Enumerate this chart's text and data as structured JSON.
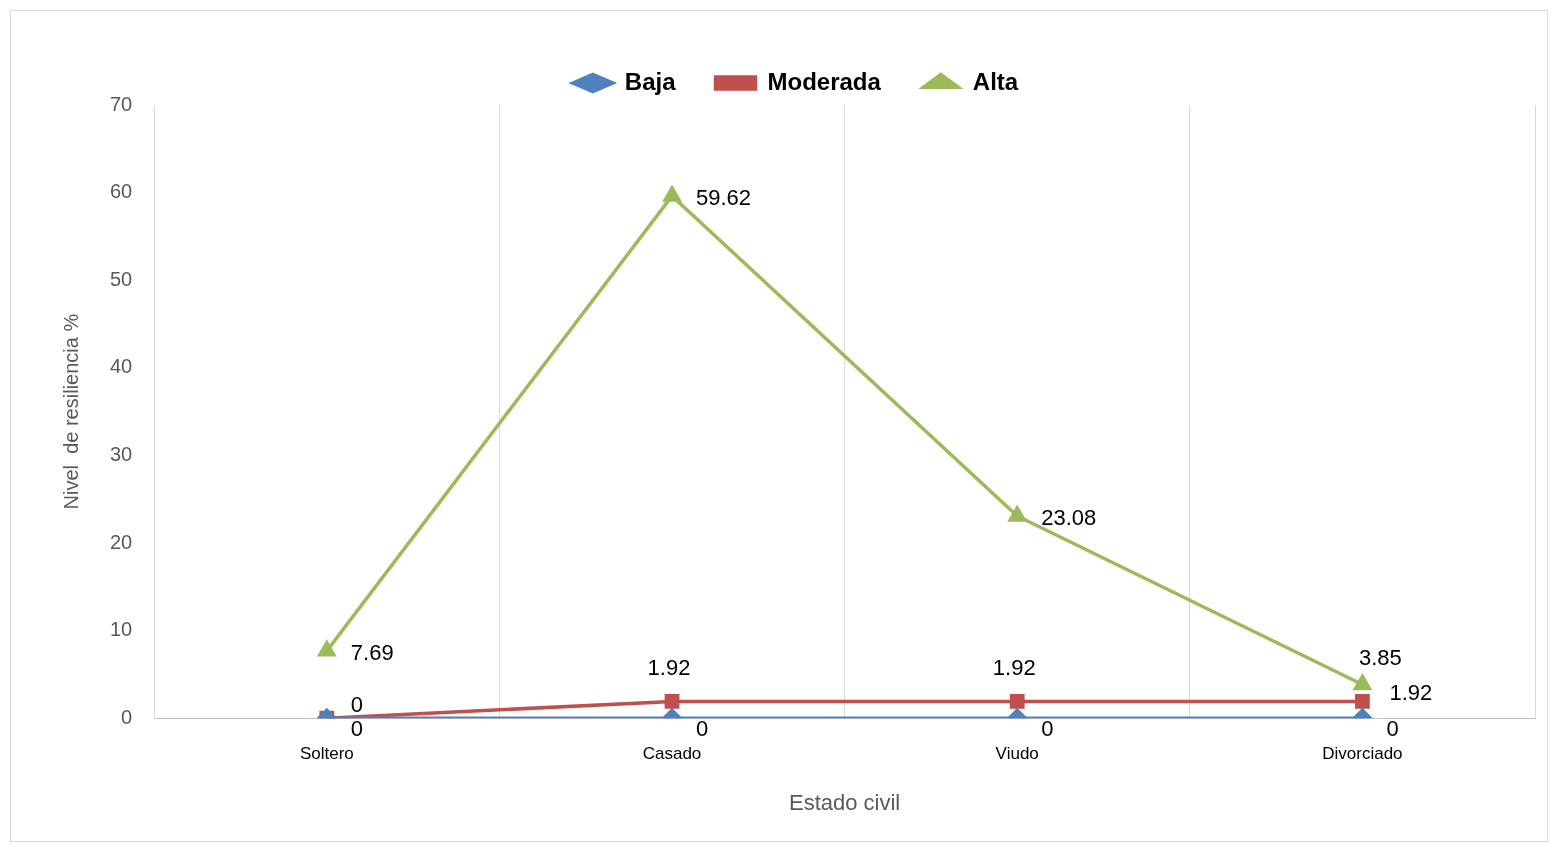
{
  "chart_data": {
    "type": "line",
    "xlabel": "Estado civil",
    "ylabel": "Nivel  de resiliencia %",
    "categories": [
      "Soltero",
      "Casado",
      "Viudo",
      "Divorciado"
    ],
    "series": [
      {
        "name": "Baja",
        "color": "#4f81bd",
        "marker": "diamond",
        "values": [
          0,
          0,
          0,
          0
        ]
      },
      {
        "name": "Moderada",
        "color": "#c0504d",
        "marker": "square",
        "values": [
          0,
          1.92,
          1.92,
          1.92
        ]
      },
      {
        "name": "Alta",
        "color": "#9bbb59",
        "marker": "triangle",
        "values": [
          7.69,
          59.62,
          23.08,
          3.85
        ]
      }
    ],
    "ylim": [
      0,
      70
    ],
    "yticks": [
      0,
      10,
      20,
      30,
      40,
      50,
      60,
      70
    ],
    "grid": "x",
    "legend": "top",
    "data_labels": true
  }
}
